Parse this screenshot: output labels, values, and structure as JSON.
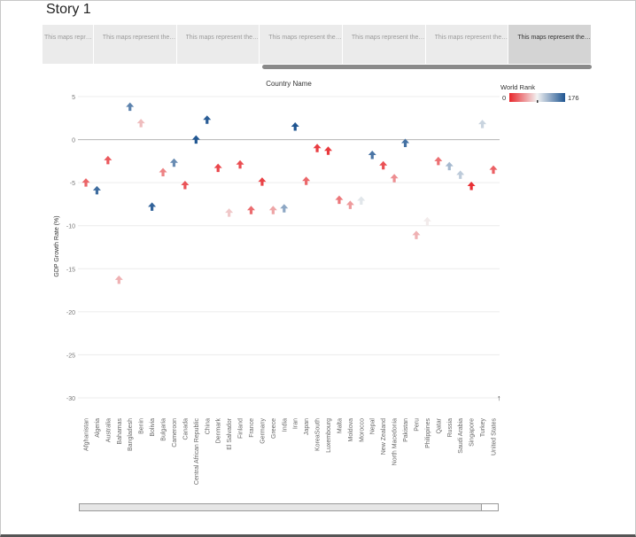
{
  "story": {
    "title": "Story 1"
  },
  "tabs": [
    {
      "label": "This maps represent th..."
    },
    {
      "label": "This maps represent the index score based..."
    },
    {
      "label": "This maps represent the index score based..."
    },
    {
      "label": "This maps represent the inflation rate in di..."
    },
    {
      "label": "This maps represent the correlation betwe..."
    },
    {
      "label": "This maps represent the correlation betwe..."
    },
    {
      "label": "This maps represent the top 40 countries b..."
    }
  ],
  "legend": {
    "title": "World Rank",
    "min": "0",
    "max": "176",
    "low_color": "#e8262b",
    "mid_color": "#f2f2f2",
    "high_color": "#1f5591"
  },
  "chart_data": {
    "type": "scatter",
    "title": "Country Name",
    "xlabel": "",
    "ylabel": "GDP Growth Rate (%)",
    "ylim": [
      -30,
      5
    ],
    "yticks": [
      5,
      0,
      -5,
      -10,
      -15,
      -20,
      -25,
      -30
    ],
    "grid": true,
    "legend_position": "top-right",
    "marker": "arrow-up",
    "categories": [
      "Afghanistan",
      "Algeria",
      "Australia",
      "Bahamas",
      "Bangladesh",
      "Benin",
      "Bolivia",
      "Bulgaria",
      "Cameroon",
      "Canada",
      "Central African Republic",
      "China",
      "Denmark",
      "El Salvador",
      "Finland",
      "France",
      "Germany",
      "Greece",
      "India",
      "Iran",
      "Japan",
      "KoreaSouth",
      "Luxembourg",
      "Malta",
      "Moldova",
      "Morocco",
      "Nepal",
      "New Zealand",
      "North Macedonia",
      "Pakistan",
      "Peru",
      "Philippines",
      "Qatar",
      "Russia",
      "Saudi Arabia",
      "Singapore",
      "Turkey",
      "United States"
    ],
    "values": [
      -5.0,
      -5.9,
      -2.4,
      -16.3,
      3.8,
      1.9,
      -7.8,
      -3.8,
      -2.7,
      -5.3,
      0.0,
      2.3,
      -3.3,
      -8.5,
      -2.9,
      -8.2,
      -4.9,
      -8.2,
      -8.0,
      1.5,
      -4.8,
      -1.0,
      -1.3,
      -7.0,
      -7.6,
      -7.1,
      -1.8,
      -3.0,
      -4.5,
      -0.4,
      -11.1,
      -9.5,
      -2.5,
      -3.1,
      -4.1,
      -5.4,
      1.8,
      -3.5
    ],
    "rank": [
      27,
      163,
      22,
      60,
      150,
      65,
      168,
      40,
      145,
      20,
      175,
      172,
      14,
      70,
      17,
      30,
      12,
      55,
      130,
      176,
      28,
      10,
      8,
      35,
      50,
      95,
      158,
      18,
      45,
      160,
      60,
      85,
      32,
      120,
      110,
      4,
      105,
      25
    ]
  }
}
